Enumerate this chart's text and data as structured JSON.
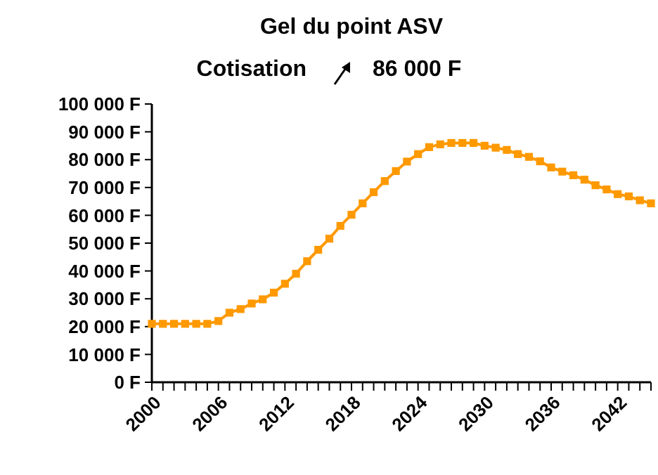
{
  "chart_data": {
    "type": "line",
    "title": "Gel du point ASV",
    "subtitle": "Cotisation",
    "annotations": [
      "86 000 F"
    ],
    "x": [
      2000,
      2001,
      2002,
      2003,
      2004,
      2005,
      2006,
      2007,
      2008,
      2009,
      2010,
      2011,
      2012,
      2013,
      2014,
      2015,
      2016,
      2017,
      2018,
      2019,
      2020,
      2021,
      2022,
      2023,
      2024,
      2025,
      2026,
      2027,
      2028,
      2029,
      2030,
      2031,
      2032,
      2033,
      2034,
      2035,
      2036,
      2037,
      2038,
      2039,
      2040,
      2041,
      2042,
      2043,
      2044,
      2045
    ],
    "series": [
      {
        "color": "#ff9900",
        "values": [
          21000,
          21000,
          21000,
          21000,
          21000,
          21000,
          22000,
          25000,
          26300,
          28300,
          29800,
          32200,
          35400,
          39000,
          43500,
          47600,
          51600,
          56200,
          60200,
          64300,
          68300,
          72300,
          75900,
          79300,
          82000,
          84500,
          85500,
          86000,
          86000,
          86000,
          85000,
          84300,
          83500,
          82000,
          81000,
          79400,
          77200,
          75700,
          74400,
          72800,
          70800,
          69300,
          67600,
          66800,
          65400,
          64300
        ]
      }
    ],
    "xlim": [
      2000,
      2045
    ],
    "xticks": [
      2000,
      2006,
      2012,
      2018,
      2024,
      2030,
      2036,
      2042
    ],
    "ylim": [
      0,
      100000
    ],
    "yticks": [
      {
        "value": 0,
        "label": "0 F"
      },
      {
        "value": 10000,
        "label": "10 000 F"
      },
      {
        "value": 20000,
        "label": "20 000 F"
      },
      {
        "value": 30000,
        "label": "30 000 F"
      },
      {
        "value": 40000,
        "label": "40 000 F"
      },
      {
        "value": 50000,
        "label": "50 000 F"
      },
      {
        "value": 60000,
        "label": "60 000 F"
      },
      {
        "value": 70000,
        "label": "70 000 F"
      },
      {
        "value": 80000,
        "label": "80 000 F"
      },
      {
        "value": 90000,
        "label": "90 000 F"
      },
      {
        "value": 100000,
        "label": "100 000 F"
      }
    ],
    "grid": false,
    "marker": "square",
    "line_style": "solid"
  }
}
